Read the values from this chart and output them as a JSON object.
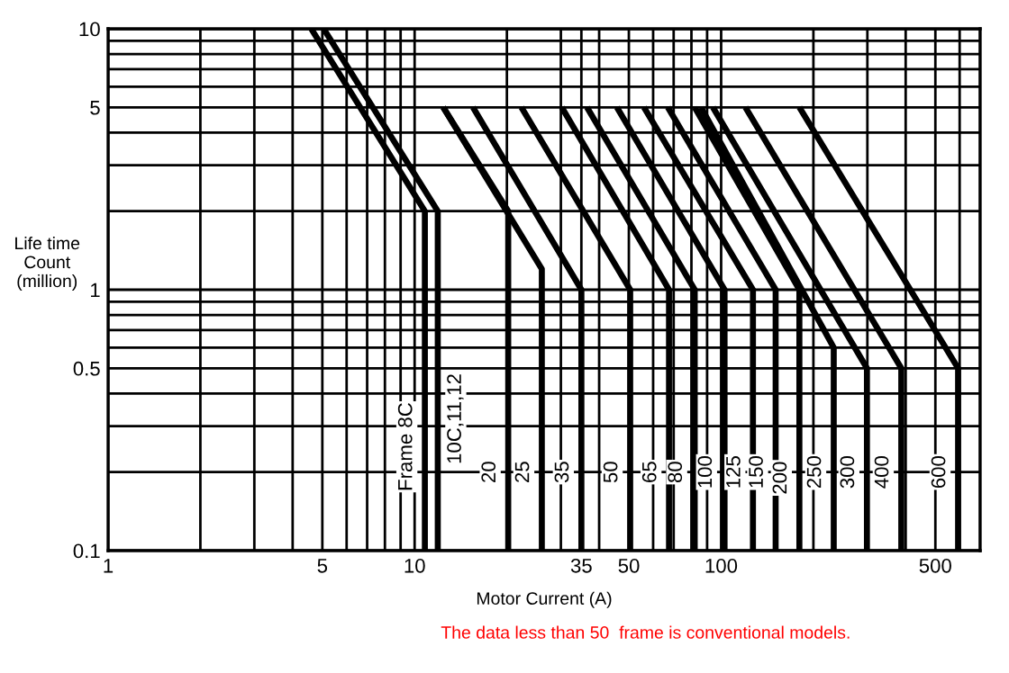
{
  "chart_data": {
    "type": "line",
    "xlabel": "Motor Current (A)",
    "ylabel": "Life time\nCount\n(million)",
    "log": "xy",
    "xlim": [
      1,
      700
    ],
    "ylim": [
      0.1,
      10
    ],
    "xticks": [
      1,
      5,
      10,
      35,
      50,
      100,
      500
    ],
    "yticks": [
      0.1,
      0.5,
      1,
      5,
      10
    ],
    "grid": true,
    "marker": "none",
    "line_style": "solid",
    "series": [
      {
        "color": "#000000",
        "x": [
          4.6,
          10.8,
          10.8
        ],
        "values": [
          10,
          2,
          0.1
        ]
      },
      {
        "color": "#000000",
        "x": [
          5.05,
          11.9,
          11.9
        ],
        "values": [
          10,
          2,
          0.1
        ]
      },
      {
        "color": "#000000",
        "x": [
          12.4,
          20.2,
          20.2
        ],
        "values": [
          5,
          2,
          0.1
        ]
      },
      {
        "color": "#000000",
        "x": [
          12.4,
          26,
          26
        ],
        "values": [
          5,
          1.2,
          0.1
        ]
      },
      {
        "color": "#000000",
        "x": [
          15.5,
          35,
          35
        ],
        "values": [
          5,
          1,
          0.1
        ]
      },
      {
        "color": "#000000",
        "x": [
          22.3,
          50.5,
          50.5
        ],
        "values": [
          5,
          1,
          0.1
        ]
      },
      {
        "color": "#000000",
        "x": [
          30.2,
          67.6,
          67.6
        ],
        "values": [
          5,
          1,
          0.1
        ]
      },
      {
        "color": "#000000",
        "x": [
          36.5,
          82,
          82
        ],
        "values": [
          5,
          1,
          0.1
        ]
      },
      {
        "color": "#000000",
        "x": [
          45.7,
          102.6,
          102.6
        ],
        "values": [
          5,
          1,
          0.1
        ]
      },
      {
        "color": "#000000",
        "x": [
          56,
          127,
          127
        ],
        "values": [
          5,
          1,
          0.1
        ]
      },
      {
        "color": "#000000",
        "x": [
          67,
          150.6,
          150.6
        ],
        "values": [
          5,
          1,
          0.1
        ]
      },
      {
        "color": "#000000",
        "x": [
          82,
          180,
          180
        ],
        "values": [
          5,
          1,
          0.1
        ]
      },
      {
        "color": "#000000",
        "x": [
          86,
          233,
          233
        ],
        "values": [
          5,
          0.6,
          0.1
        ]
      },
      {
        "color": "#000000",
        "x": [
          94,
          299,
          299
        ],
        "values": [
          5,
          0.5,
          0.1
        ]
      },
      {
        "color": "#000000",
        "x": [
          120,
          387,
          387
        ],
        "values": [
          5,
          0.5,
          0.1
        ]
      },
      {
        "color": "#000000",
        "x": [
          180,
          593,
          593
        ],
        "values": [
          5,
          0.5,
          0.1
        ]
      }
    ],
    "annotations": [
      {
        "text": "Frame 8C",
        "x": 10.8,
        "y": 0.25
      },
      {
        "text": "10C,11,12",
        "x": 11.9,
        "y": 0.32
      },
      {
        "text": "20",
        "x": 20.2,
        "y": 0.2
      },
      {
        "text": "25",
        "x": 26,
        "y": 0.2
      },
      {
        "text": "35",
        "x": 35,
        "y": 0.2
      },
      {
        "text": "50",
        "x": 50.5,
        "y": 0.2
      },
      {
        "text": "65",
        "x": 67.6,
        "y": 0.2
      },
      {
        "text": "80",
        "x": 82,
        "y": 0.2
      },
      {
        "text": "100",
        "x": 102.6,
        "y": 0.2
      },
      {
        "text": "125",
        "x": 127,
        "y": 0.2
      },
      {
        "text": "150",
        "x": 150.6,
        "y": 0.2
      },
      {
        "text": "200",
        "x": 180,
        "y": 0.19
      },
      {
        "text": "250",
        "x": 233,
        "y": 0.2
      },
      {
        "text": "300",
        "x": 299,
        "y": 0.2
      },
      {
        "text": "400",
        "x": 387,
        "y": 0.2
      },
      {
        "text": "600",
        "x": 593,
        "y": 0.2
      },
      "The data less than 50  frame is conventional models."
    ]
  }
}
